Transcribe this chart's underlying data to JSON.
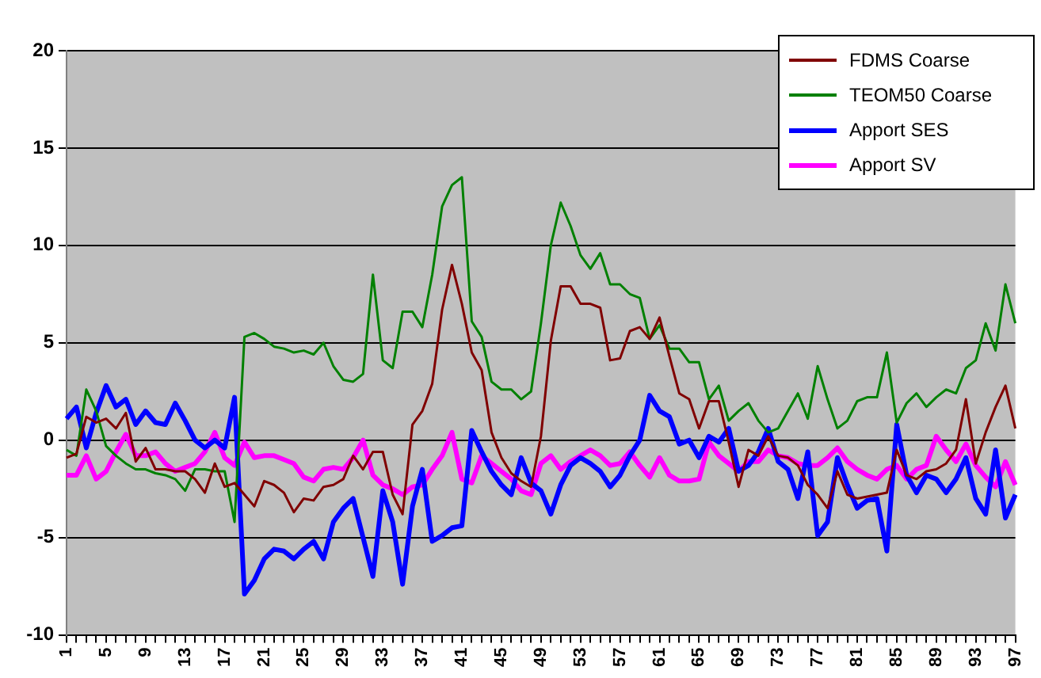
{
  "chart_data": {
    "type": "line",
    "categories": [
      "1",
      null,
      null,
      null,
      "5",
      null,
      null,
      null,
      "9",
      null,
      null,
      null,
      "13",
      null,
      null,
      null,
      "17",
      null,
      null,
      null,
      "21",
      null,
      null,
      null,
      "25",
      null,
      null,
      null,
      "29",
      null,
      null,
      null,
      "33",
      null,
      null,
      null,
      "37",
      null,
      null,
      null,
      "41",
      null,
      null,
      null,
      "45",
      null,
      null,
      null,
      "49",
      null,
      null,
      null,
      "53",
      null,
      null,
      null,
      "57",
      null,
      null,
      null,
      "61",
      null,
      null,
      null,
      "65",
      null,
      null,
      null,
      "69",
      null,
      null,
      null,
      "73",
      null,
      null,
      null,
      "77",
      null,
      null,
      null,
      "81",
      null,
      null,
      null,
      "85",
      null,
      null,
      null,
      "89",
      null,
      null,
      null,
      "93",
      null,
      null,
      null,
      "97"
    ],
    "series": [
      {
        "name": "FDMS Coarse",
        "color": "#800000",
        "values": [
          -0.9,
          -0.7,
          1.2,
          0.9,
          1.1,
          0.6,
          1.4,
          -1.1,
          -0.4,
          -1.5,
          -1.5,
          -1.6,
          -1.6,
          -2.0,
          -2.7,
          -1.2,
          -2.4,
          -2.2,
          -2.8,
          -3.4,
          -2.1,
          -2.3,
          -2.7,
          -3.7,
          -3.0,
          -3.1,
          -2.4,
          -2.3,
          -2.0,
          -0.8,
          -1.5,
          -0.6,
          -0.6,
          -2.8,
          -3.8,
          0.8,
          1.5,
          2.9,
          6.7,
          9.0,
          7.0,
          4.5,
          3.6,
          0.4,
          -0.9,
          -1.7,
          -2.1,
          -2.4,
          0.2,
          5.1,
          7.9,
          7.9,
          7.0,
          7.0,
          6.8,
          4.1,
          4.2,
          5.6,
          5.8,
          5.2,
          6.3,
          4.3,
          2.4,
          2.1,
          0.6,
          2.0,
          2.0,
          -0.1,
          -2.4,
          -0.5,
          -0.8,
          0.2,
          -0.8,
          -0.9,
          -1.3,
          -2.3,
          -2.8,
          -3.5,
          -1.6,
          -2.8,
          -3.0,
          -2.9,
          -2.8,
          -2.7,
          -0.5,
          -1.8,
          -2.0,
          -1.6,
          -1.5,
          -1.2,
          -0.5,
          2.1,
          -1.2,
          0.4,
          1.7,
          2.8,
          0.6
        ]
      },
      {
        "name": "TEOM50 Coarse",
        "color": "#008000",
        "values": [
          -0.5,
          -0.8,
          2.6,
          1.5,
          -0.3,
          -0.8,
          -1.2,
          -1.5,
          -1.5,
          -1.7,
          -1.8,
          -2.0,
          -2.6,
          -1.5,
          -1.5,
          -1.6,
          -1.6,
          -4.2,
          5.3,
          5.5,
          5.2,
          4.8,
          4.7,
          4.5,
          4.6,
          4.4,
          5.0,
          3.8,
          3.1,
          3.0,
          3.4,
          8.5,
          4.1,
          3.7,
          6.6,
          6.6,
          5.8,
          8.5,
          12.0,
          13.1,
          13.5,
          6.1,
          5.3,
          3.0,
          2.6,
          2.6,
          2.1,
          2.5,
          6.0,
          10.0,
          12.2,
          11.0,
          9.5,
          8.8,
          9.6,
          8.0,
          8.0,
          7.5,
          7.3,
          5.2,
          5.9,
          4.7,
          4.7,
          4.0,
          4.0,
          2.1,
          2.8,
          1.0,
          1.5,
          1.9,
          1.0,
          0.4,
          0.6,
          1.5,
          2.4,
          1.1,
          3.8,
          2.1,
          0.6,
          1.0,
          2.0,
          2.2,
          2.2,
          4.5,
          0.9,
          1.9,
          2.4,
          1.7,
          2.2,
          2.6,
          2.4,
          3.7,
          4.1,
          6.0,
          4.6,
          8.0,
          6.0
        ]
      },
      {
        "name": "Apport SES",
        "color": "#0000ff",
        "values": [
          1.1,
          1.7,
          -0.4,
          1.4,
          2.8,
          1.7,
          2.1,
          0.8,
          1.5,
          0.9,
          0.8,
          1.9,
          1.0,
          0.0,
          -0.4,
          0.0,
          -0.4,
          2.2,
          -7.9,
          -7.2,
          -6.1,
          -5.6,
          -5.7,
          -6.1,
          -5.6,
          -5.2,
          -6.1,
          -4.2,
          -3.5,
          -3.0,
          -5.0,
          -7.0,
          -2.6,
          -4.2,
          -7.4,
          -3.4,
          -1.5,
          -5.2,
          -4.9,
          -4.5,
          -4.4,
          0.5,
          -0.6,
          -1.6,
          -2.3,
          -2.8,
          -0.9,
          -2.2,
          -2.6,
          -3.8,
          -2.3,
          -1.3,
          -0.9,
          -1.2,
          -1.6,
          -2.4,
          -1.8,
          -0.8,
          0.0,
          2.3,
          1.5,
          1.2,
          -0.2,
          0.0,
          -0.9,
          0.2,
          -0.1,
          0.6,
          -1.6,
          -1.3,
          -0.6,
          0.6,
          -1.1,
          -1.5,
          -3.0,
          -0.6,
          -4.9,
          -4.2,
          -0.9,
          -2.3,
          -3.5,
          -3.1,
          -3.0,
          -5.7,
          0.8,
          -1.8,
          -2.7,
          -1.8,
          -2.0,
          -2.7,
          -2.0,
          -0.9,
          -3.0,
          -3.8,
          -0.5,
          -4.0,
          -2.8
        ]
      },
      {
        "name": "Apport SV",
        "color": "#ff00ff",
        "values": [
          -1.8,
          -1.8,
          -0.8,
          -2.0,
          -1.6,
          -0.6,
          0.3,
          -0.8,
          -0.8,
          -0.6,
          -1.2,
          -1.6,
          -1.4,
          -1.2,
          -0.6,
          0.4,
          -0.9,
          -1.3,
          -0.1,
          -0.9,
          -0.8,
          -0.8,
          -1.0,
          -1.2,
          -1.9,
          -2.1,
          -1.5,
          -1.4,
          -1.5,
          -0.9,
          0.0,
          -1.8,
          -2.3,
          -2.5,
          -2.8,
          -2.4,
          -2.3,
          -1.5,
          -0.8,
          0.4,
          -2.0,
          -2.2,
          -0.8,
          -1.2,
          -1.6,
          -2.0,
          -2.6,
          -2.8,
          -1.2,
          -0.8,
          -1.5,
          -1.1,
          -0.8,
          -0.5,
          -0.8,
          -1.3,
          -1.2,
          -0.6,
          -1.3,
          -1.9,
          -0.9,
          -1.8,
          -2.1,
          -2.1,
          -2.0,
          -0.1,
          -0.8,
          -1.2,
          -1.6,
          -1.1,
          -1.1,
          -0.5,
          -0.8,
          -0.9,
          -1.2,
          -1.3,
          -1.3,
          -0.9,
          -0.4,
          -1.1,
          -1.5,
          -1.8,
          -2.0,
          -1.5,
          -1.3,
          -2.0,
          -1.5,
          -1.3,
          0.2,
          -0.5,
          -1.1,
          -0.2,
          -1.3,
          -1.9,
          -2.4,
          -1.1,
          -2.3
        ]
      }
    ],
    "ylim": [
      -10,
      20
    ],
    "yticks": [
      -10,
      -5,
      0,
      5,
      10,
      15,
      20
    ],
    "grid": "y",
    "legend": "top right",
    "marker": "none",
    "line_style": "solid"
  }
}
